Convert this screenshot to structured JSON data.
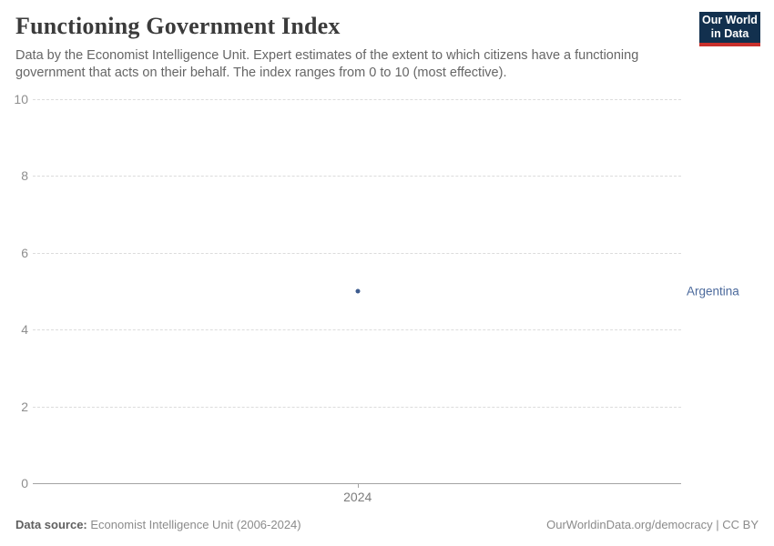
{
  "header": {
    "title": "Functioning Government Index",
    "subtitle": "Data by the Economist Intelligence Unit. Expert estimates of the extent to which citizens have a functioning government that acts on their behalf. The index ranges from 0 to 10 (most effective).",
    "logo": {
      "line1": "Our World",
      "line2": "in Data",
      "bg_color": "#12304e",
      "bar_color": "#c9302c"
    }
  },
  "chart_data": {
    "type": "scatter",
    "title": "Functioning Government Index",
    "xlabel": "",
    "ylabel": "",
    "series": [
      {
        "name": "Argentina",
        "x": [
          2024
        ],
        "values": [
          5
        ],
        "color": "#3e5c8f",
        "label_color": "#4c6a9c"
      }
    ],
    "x_ticks": [
      {
        "label": "2024",
        "frac": 0.501
      }
    ],
    "y_ticks": [
      0,
      2,
      4,
      6,
      8,
      10
    ],
    "ylim": [
      0,
      10
    ],
    "grid": true,
    "grid_style": "dashed",
    "legend_position": "entity-label-right"
  },
  "footer": {
    "source_label": "Data source:",
    "source_value": "Economist Intelligence Unit (2006-2024)",
    "credit": "OurWorldinData.org/democracy | CC BY"
  }
}
